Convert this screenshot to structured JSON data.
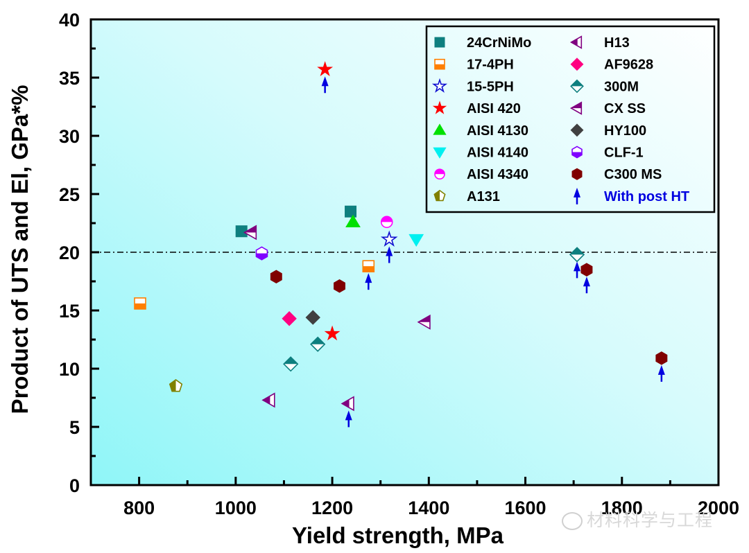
{
  "chart_data": {
    "type": "scatter",
    "title": "",
    "xlabel": "Yield strength, MPa",
    "ylabel": "Product of UTS and El, GPa*%",
    "xlim": [
      700,
      2000
    ],
    "ylim": [
      0,
      40
    ],
    "x_ticks": [
      800,
      1000,
      1200,
      1400,
      1600,
      1800,
      2000
    ],
    "y_ticks": [
      0,
      5,
      10,
      15,
      20,
      25,
      30,
      35,
      40
    ],
    "reference_line": {
      "y": 20,
      "style": "dash-dot"
    },
    "grid": false,
    "legend_position": "top-right",
    "series": [
      {
        "name": "24CrNiMo",
        "marker": "square",
        "color": "#0e7f7f",
        "fill": "full",
        "points": [
          {
            "x": 1012,
            "y": 21.8
          },
          {
            "x": 1238,
            "y": 23.5
          }
        ]
      },
      {
        "name": "17-4PH",
        "marker": "square",
        "color": "#ff7f00",
        "fill": "bottom",
        "points": [
          {
            "x": 802,
            "y": 15.6
          },
          {
            "x": 1275,
            "y": 18.8,
            "post_ht": true
          }
        ]
      },
      {
        "name": "15-5PH",
        "marker": "star",
        "color": "#1010d0",
        "fill": "bottom-outline",
        "points": [
          {
            "x": 1318,
            "y": 21.1,
            "post_ht": true
          }
        ]
      },
      {
        "name": "AISI 420",
        "marker": "star",
        "color": "#ff0000",
        "fill": "full",
        "points": [
          {
            "x": 1185,
            "y": 35.7,
            "post_ht": true
          },
          {
            "x": 1200,
            "y": 13.0
          }
        ]
      },
      {
        "name": "AISI 4130",
        "marker": "triangle-up",
        "color": "#00e000",
        "fill": "full",
        "points": [
          {
            "x": 1243,
            "y": 22.6
          }
        ]
      },
      {
        "name": "AISI 4140",
        "marker": "triangle-down",
        "color": "#00f0f0",
        "fill": "full",
        "points": [
          {
            "x": 1374,
            "y": 21.1
          }
        ]
      },
      {
        "name": "AISI 4340",
        "marker": "circle",
        "color": "#ff00ff",
        "fill": "top",
        "points": [
          {
            "x": 1313,
            "y": 22.6
          }
        ]
      },
      {
        "name": "A131",
        "marker": "pentagon",
        "color": "#808000",
        "fill": "left",
        "points": [
          {
            "x": 876,
            "y": 8.5
          }
        ]
      },
      {
        "name": "H13",
        "marker": "triangle-left",
        "color": "#800080",
        "fill": "left",
        "points": [
          {
            "x": 1070,
            "y": 7.3
          },
          {
            "x": 1234,
            "y": 7.0,
            "post_ht": true
          }
        ]
      },
      {
        "name": "AF9628",
        "marker": "diamond",
        "color": "#ff0080",
        "fill": "full",
        "points": [
          {
            "x": 1111,
            "y": 14.3
          }
        ]
      },
      {
        "name": "300M",
        "marker": "diamond",
        "color": "#0e7f7f",
        "fill": "top",
        "points": [
          {
            "x": 1114,
            "y": 10.4
          },
          {
            "x": 1170,
            "y": 12.1
          },
          {
            "x": 1707,
            "y": 19.8,
            "post_ht": true
          }
        ]
      },
      {
        "name": "CX SS",
        "marker": "triangle-left",
        "color": "#800080",
        "fill": "top",
        "points": [
          {
            "x": 1032,
            "y": 21.7
          },
          {
            "x": 1392,
            "y": 14.0
          }
        ]
      },
      {
        "name": "HY100",
        "marker": "diamond",
        "color": "#404040",
        "fill": "full",
        "points": [
          {
            "x": 1160,
            "y": 14.4
          }
        ]
      },
      {
        "name": "CLF-1",
        "marker": "hexagon",
        "color": "#8000ff",
        "fill": "bottom",
        "points": [
          {
            "x": 1054,
            "y": 19.9
          }
        ]
      },
      {
        "name": "C300 MS",
        "marker": "hexagon",
        "color": "#800000",
        "fill": "full",
        "points": [
          {
            "x": 1084,
            "y": 17.9
          },
          {
            "x": 1215,
            "y": 17.1
          },
          {
            "x": 1727,
            "y": 18.5,
            "post_ht": true
          },
          {
            "x": 1882,
            "y": 10.9,
            "post_ht": true
          }
        ]
      }
    ],
    "legend": {
      "entries": [
        "24CrNiMo",
        "17-4PH",
        "15-5PH",
        "AISI 420",
        "AISI 4130",
        "AISI 4140",
        "AISI 4340",
        "A131",
        "H13",
        "AF9628",
        "300M",
        "CX SS",
        "HY100",
        "CLF-1",
        "C300 MS"
      ],
      "arrow_entry": {
        "label": "With post HT",
        "color": "#0000e0",
        "marker": "arrow-up"
      }
    },
    "background": {
      "gradient_from": "#8ff6f8",
      "gradient_to": "#ffffff"
    }
  },
  "watermark": {
    "text": "材料科学与工程",
    "icon": "wechat-icon"
  }
}
